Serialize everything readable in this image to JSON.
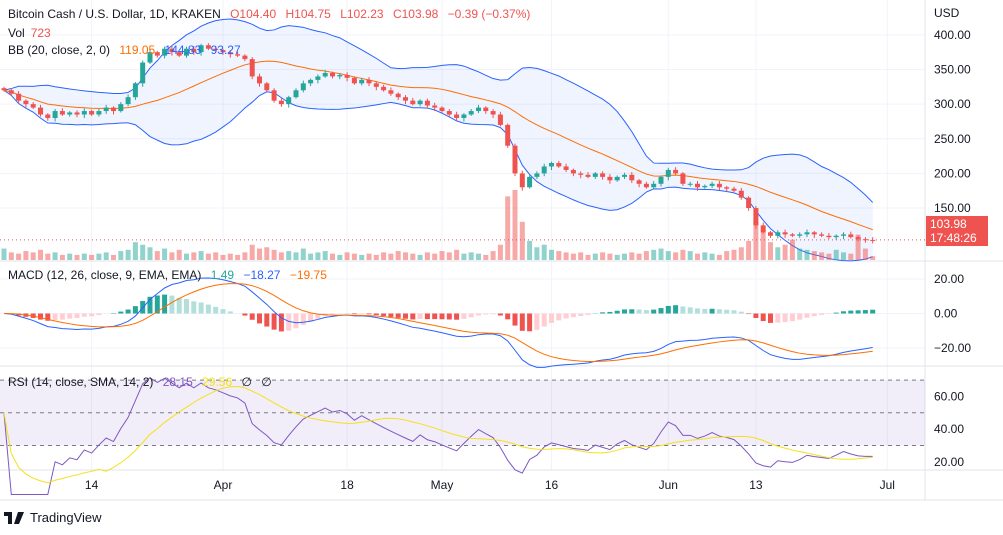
{
  "header": {
    "symbol": "Bitcoin Cash / U.S. Dollar, 1D, KRAKEN",
    "open": "O104.40",
    "high": "H104.75",
    "low": "L102.23",
    "close": "C103.98",
    "change": "−0.39 (−0.37%)"
  },
  "vol_legend": {
    "label": "Vol",
    "value": "723"
  },
  "bb_legend": {
    "label": "BB (20, close, 2, 0)",
    "basis": "119.05",
    "upper": "144.83",
    "lower": "93.27"
  },
  "macd_legend": {
    "label": "MACD (12, 26, close, 9, EMA, EMA)",
    "hist": "1.49",
    "macd": "−18.27",
    "signal": "−19.75"
  },
  "rsi_legend": {
    "label": "RSI (14, close, SMA, 14, 2)",
    "rsi": "28.15",
    "ma": "29.56",
    "u1": "∅",
    "u2": "∅"
  },
  "price_tag": {
    "price": "103.98",
    "countdown": "17:48:26"
  },
  "logo": {
    "text": "TradingView",
    "icon": "tradingview-logo-icon"
  },
  "colors": {
    "up": "#26a69a",
    "down": "#ef5350",
    "bb": "#2962ff",
    "basis": "#ff6d00",
    "rsi": "#7e57c2",
    "rsi_ma": "#f5e01a"
  },
  "chart_data": {
    "type": "candlestick",
    "currency": "USD",
    "x_start": "2022-03-02",
    "interval": "1D",
    "time_ticks": [
      {
        "label": "14",
        "date": "2022-03-14"
      },
      {
        "label": "Apr",
        "date": "2022-04-01"
      },
      {
        "label": "18",
        "date": "2022-04-18"
      },
      {
        "label": "May",
        "date": "2022-05-01"
      },
      {
        "label": "16",
        "date": "2022-05-16"
      },
      {
        "label": "Jun",
        "date": "2022-06-01"
      },
      {
        "label": "13",
        "date": "2022-06-13"
      },
      {
        "label": "Jul",
        "date": "2022-07-01"
      }
    ],
    "price_ticks": [
      "400.00",
      "350.00",
      "300.00",
      "250.00",
      "200.00",
      "150.00"
    ],
    "price_range": [
      75,
      420
    ],
    "macd_ticks": [
      "20.00",
      "0.00",
      "−20.00"
    ],
    "macd_range": [
      -30,
      30
    ],
    "rsi_ticks": [
      "60.00",
      "40.00",
      "20.00"
    ],
    "rsi_range": [
      15,
      78
    ],
    "rsi_bands": [
      70,
      50,
      30
    ],
    "close": [
      320,
      315,
      305,
      300,
      295,
      285,
      280,
      290,
      285,
      288,
      285,
      290,
      285,
      290,
      295,
      290,
      300,
      310,
      330,
      360,
      375,
      370,
      380,
      375,
      370,
      380,
      375,
      385,
      380,
      378,
      375,
      372,
      370,
      365,
      340,
      330,
      320,
      305,
      300,
      310,
      320,
      330,
      335,
      340,
      345,
      340,
      342,
      338,
      330,
      335,
      330,
      325,
      320,
      315,
      310,
      305,
      300,
      305,
      298,
      295,
      290,
      285,
      280,
      285,
      290,
      295,
      290,
      285,
      270,
      240,
      200,
      180,
      195,
      200,
      210,
      215,
      210,
      205,
      200,
      198,
      195,
      200,
      195,
      190,
      195,
      198,
      190,
      185,
      180,
      185,
      195,
      205,
      200,
      185,
      185,
      180,
      182,
      185,
      180,
      178,
      175,
      165,
      150,
      125,
      115,
      110,
      115,
      112,
      110,
      112,
      115,
      112,
      110,
      108,
      110,
      112,
      108,
      105,
      104,
      103.98
    ],
    "volume": [
      9,
      6,
      5,
      7,
      6,
      8,
      5,
      6,
      4,
      5,
      4,
      5,
      4,
      5,
      6,
      4,
      7,
      8,
      14,
      12,
      10,
      7,
      9,
      6,
      8,
      5,
      6,
      7,
      5,
      6,
      4,
      5,
      4,
      6,
      12,
      9,
      10,
      8,
      6,
      7,
      6,
      9,
      5,
      6,
      7,
      5,
      4,
      6,
      5,
      4,
      5,
      4,
      6,
      5,
      7,
      6,
      5,
      4,
      6,
      5,
      7,
      6,
      8,
      5,
      6,
      5,
      4,
      7,
      12,
      50,
      55,
      30,
      15,
      10,
      12,
      8,
      7,
      6,
      5,
      6,
      4,
      5,
      6,
      5,
      4,
      5,
      6,
      5,
      7,
      8,
      9,
      7,
      6,
      8,
      7,
      5,
      6,
      5,
      4,
      7,
      8,
      10,
      15,
      30,
      22,
      14,
      10,
      12,
      16,
      9,
      8,
      7,
      6,
      5,
      8,
      6,
      5,
      20,
      9,
      3
    ]
  }
}
